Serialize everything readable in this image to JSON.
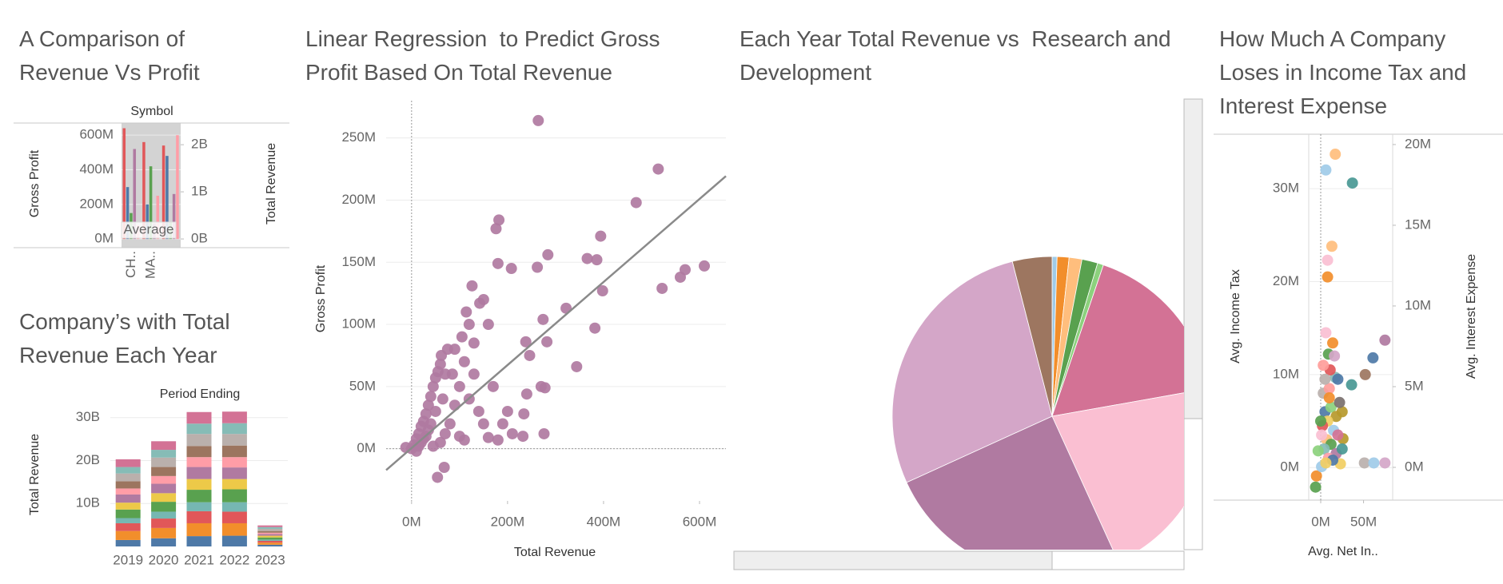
{
  "chart_data": [
    {
      "type": "bar",
      "title": "A Comparison of Revenue Vs Profit",
      "header": "Symbol",
      "y_label": "Gross Profit",
      "y2_label": "Total Revenue",
      "annotation": "Average",
      "categories": [
        "CH..",
        "MA..",
        null
      ],
      "series": [
        {
          "color": "#e15759",
          "values": [
            640,
            560,
            540
          ]
        },
        {
          "color": "#4e79a7",
          "values": [
            300,
            200,
            480
          ]
        },
        {
          "color": "#59a14f",
          "values": [
            150,
            420,
            100
          ]
        },
        {
          "color": "#b07aa1",
          "values": [
            520,
            90,
            260
          ]
        },
        {
          "color": "#ff9da7",
          "values": [
            80,
            250,
            600
          ]
        }
      ],
      "ylim": [
        -50,
        670
      ],
      "yticks": [
        {
          "value": 0,
          "label": "0M"
        },
        {
          "value": 200,
          "label": "200M"
        },
        {
          "value": 400,
          "label": "400M"
        },
        {
          "value": 600,
          "label": "600M"
        }
      ],
      "y2lim": [
        -0.185,
        2.46
      ],
      "y2ticks": [
        {
          "value": 0,
          "label": "0B"
        },
        {
          "value": 1,
          "label": "1B"
        },
        {
          "value": 2,
          "label": "2B"
        }
      ],
      "grid": true
    },
    {
      "type": "stacked_bar",
      "title": "Company’s with Total Revenue Each Year",
      "header": "Period Ending",
      "y_label": "Total Revenue",
      "categories": [
        "2019",
        "2020",
        "2021",
        "2022",
        "2023"
      ],
      "series": [
        {
          "color": "#4e79a7",
          "values": [
            1.5,
            1.9,
            2.4,
            2.5,
            0.4
          ]
        },
        {
          "color": "#f28e2b",
          "values": [
            2.1,
            2.4,
            3.0,
            2.9,
            0.5
          ]
        },
        {
          "color": "#e15759",
          "values": [
            1.8,
            2.2,
            2.8,
            2.7,
            0.4
          ]
        },
        {
          "color": "#76b7b2",
          "values": [
            1.2,
            1.6,
            2.1,
            2.2,
            0.3
          ]
        },
        {
          "color": "#59a14f",
          "values": [
            2.0,
            2.3,
            2.9,
            3.0,
            0.5
          ]
        },
        {
          "color": "#edc948",
          "values": [
            1.6,
            2.0,
            2.5,
            2.4,
            0.4
          ]
        },
        {
          "color": "#b07aa1",
          "values": [
            1.9,
            2.2,
            2.8,
            2.7,
            0.4
          ]
        },
        {
          "color": "#ff9da7",
          "values": [
            1.4,
            1.8,
            2.3,
            2.4,
            0.3
          ]
        },
        {
          "color": "#9c755f",
          "values": [
            1.7,
            2.1,
            2.6,
            2.7,
            0.4
          ]
        },
        {
          "color": "#bab0ac",
          "values": [
            1.8,
            2.2,
            2.8,
            2.7,
            0.5
          ]
        },
        {
          "color": "#86bcb6",
          "values": [
            1.5,
            1.8,
            2.4,
            2.5,
            0.4
          ]
        },
        {
          "color": "#d37295",
          "values": [
            1.8,
            2.0,
            2.7,
            2.7,
            0.4
          ]
        }
      ],
      "ylim": [
        0,
        32
      ],
      "yticks": [
        {
          "value": 10,
          "label": "10B"
        },
        {
          "value": 20,
          "label": "20B"
        },
        {
          "value": 30,
          "label": "30B"
        }
      ],
      "grid": true
    },
    {
      "type": "scatter",
      "title": "Linear Regression  to Predict Gross Profit Based On Total Revenue",
      "x_label": "Total Revenue",
      "y_label": "Gross Profit",
      "color": "#b07aa1",
      "x": [
        264,
        514,
        468,
        182,
        176,
        394,
        284,
        366,
        386,
        610,
        570,
        560,
        522,
        398,
        180,
        208,
        262,
        322,
        274,
        382,
        282,
        238,
        344,
        246,
        126,
        142,
        114,
        270,
        278,
        240,
        234,
        190,
        210,
        276,
        232,
        160,
        180,
        110,
        68,
        54,
        -12,
        0,
        5,
        10,
        15,
        20,
        25,
        30,
        35,
        40,
        45,
        50,
        55,
        60,
        62,
        70,
        65,
        50,
        40,
        30,
        20,
        10,
        80,
        90,
        100,
        110,
        85,
        75,
        120,
        130,
        140,
        150,
        100,
        160,
        170,
        200,
        60,
        45,
        35,
        25,
        15,
        70,
        90,
        120,
        105,
        150,
        130
      ],
      "values": [
        264,
        225,
        198,
        184,
        177,
        171,
        156,
        153,
        152,
        147,
        144,
        138,
        129,
        127,
        149,
        145,
        146,
        113,
        104,
        97,
        86,
        86,
        66,
        75,
        131,
        117,
        110,
        50,
        49,
        44,
        28,
        20,
        12,
        12,
        10,
        9,
        7,
        7,
        -15,
        -23,
        1,
        0,
        3,
        8,
        12,
        18,
        22,
        28,
        35,
        42,
        50,
        57,
        62,
        68,
        75,
        60,
        40,
        30,
        20,
        10,
        5,
        -2,
        20,
        35,
        50,
        70,
        60,
        80,
        40,
        60,
        30,
        20,
        10,
        100,
        50,
        30,
        5,
        2,
        15,
        8,
        2,
        12,
        80,
        100,
        90,
        120,
        85
      ],
      "trendline": {
        "slope": 0.334,
        "intercept": 0.5
      },
      "xlim": [
        -53,
        655
      ],
      "xticks": [
        {
          "value": 0,
          "label": "0M"
        },
        {
          "value": 200,
          "label": "200M"
        },
        {
          "value": 400,
          "label": "400M"
        },
        {
          "value": 600,
          "label": "600M"
        }
      ],
      "ylim": [
        -42,
        280
      ],
      "yticks": [
        {
          "value": 0,
          "label": "0M"
        },
        {
          "value": 50,
          "label": "50M"
        },
        {
          "value": 100,
          "label": "100M"
        },
        {
          "value": 150,
          "label": "150M"
        },
        {
          "value": 200,
          "label": "200M"
        },
        {
          "value": 250,
          "label": "250M"
        }
      ],
      "grid": true
    },
    {
      "type": "pie",
      "title": "Each Year Total Revenue vs  Research and Development",
      "values": [
        0.5,
        1.2,
        1.3,
        1.6,
        0.6,
        17,
        21,
        25,
        27.8,
        4
      ],
      "colors": [
        "#a0cbe8",
        "#f28e2b",
        "#ffbe7d",
        "#59a14f",
        "#8cd17d",
        "#d37295",
        "#fabfd2",
        "#b07aa1",
        "#d4a6c8",
        "#9d7660"
      ]
    },
    {
      "type": "scatter",
      "title": "How Much A Company Loses in Income Tax and Interest Expense",
      "x_label": "Avg. Net In..",
      "y_label": "Avg. Income Tax",
      "y2_label": "Avg. Interest Expense",
      "x": [
        17,
        6,
        37,
        13,
        8,
        8,
        75,
        61,
        14,
        52,
        36,
        17,
        6,
        9,
        25,
        26,
        23,
        51,
        62,
        75,
        -6,
        -5,
        1,
        3,
        10,
        5,
        12,
        18,
        8,
        2,
        15,
        20,
        7,
        12,
        4,
        18,
        9,
        14,
        -3,
        0,
        22,
        11,
        16,
        5,
        20,
        3,
        10,
        25,
        1,
        6
      ],
      "values": [
        33.7,
        32,
        30.6,
        23.8,
        22.3,
        20.5,
        13.7,
        11.8,
        13.4,
        10,
        8.9,
        9.7,
        14.5,
        12.2,
        6,
        3.1,
        0.4,
        0.5,
        0.5,
        0.5,
        -2.1,
        -0.9,
        0.1,
        8,
        8.5,
        6,
        6.5,
        5.5,
        5,
        4.5,
        4,
        3.5,
        3,
        2.5,
        2,
        1.5,
        1,
        0.8,
        1.8,
        5,
        7,
        10.5,
        12,
        9.5,
        9.5,
        11,
        7.5,
        2,
        3.5,
        0.5
      ],
      "colors": [
        "#ffbe7d",
        "#a0cbe8",
        "#499894",
        "#ffbe7d",
        "#fabfd2",
        "#f28e2b",
        "#b07aa1",
        "#4e79a7",
        "#f28e2b",
        "#9d7660",
        "#499894",
        "#86bcb6",
        "#fabfd2",
        "#59a14f",
        "#b6992d",
        "#b6992d",
        "#f1ce63",
        "#bab0ac",
        "#a0cbe8",
        "#d4a6c8",
        "#59a14f",
        "#f28e2b",
        "#a0cbe8",
        "#bab0ac",
        "#ff9d9a",
        "#4e79a7",
        "#8cd17d",
        "#b6992d",
        "#f1ce63",
        "#e15759",
        "#a0cbe8",
        "#d37295",
        "#ffbe7d",
        "#59a14f",
        "#86bcb6",
        "#b07aa1",
        "#ff9da7",
        "#4e79a7",
        "#8cd17d",
        "#59a14f",
        "#79706e",
        "#e15759",
        "#d4a6c8",
        "#bab0ac",
        "#4e79a7",
        "#ff9d9a",
        "#f28e2b",
        "#499894",
        "#fabfd2",
        "#f1ce63"
      ],
      "xlim": [
        -14,
        84
      ],
      "xticks": [
        {
          "value": 0,
          "label": "0M"
        },
        {
          "value": 50,
          "label": "50M"
        }
      ],
      "ylim": [
        -3.5,
        35.85
      ],
      "yticks": [
        {
          "value": 0,
          "label": "0M"
        },
        {
          "value": 10,
          "label": "10M"
        },
        {
          "value": 20,
          "label": "20M"
        },
        {
          "value": 30,
          "label": "30M"
        }
      ],
      "y2lim": [
        -2.03,
        20.64
      ],
      "y2ticks": [
        {
          "value": 0,
          "label": "0M"
        },
        {
          "value": 5,
          "label": "5M"
        },
        {
          "value": 10,
          "label": "10M"
        },
        {
          "value": 15,
          "label": "15M"
        },
        {
          "value": 20,
          "label": "20M"
        }
      ],
      "grid": true
    }
  ]
}
